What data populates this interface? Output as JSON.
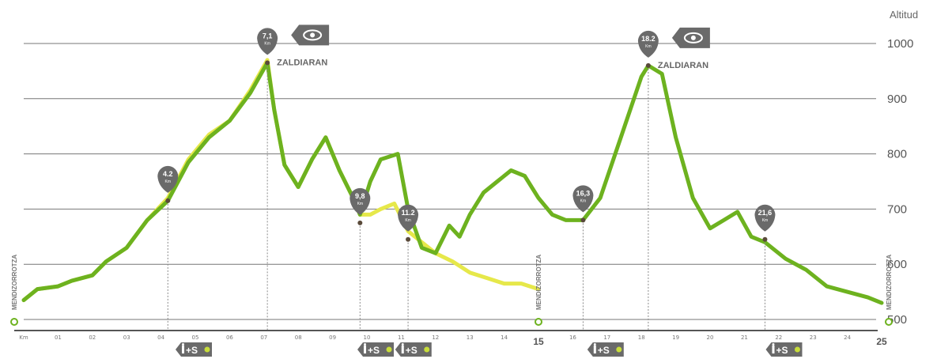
{
  "chart_data": {
    "type": "line",
    "ylabel": "Altitud",
    "ylim": [
      480,
      1030
    ],
    "yticks": [
      500,
      600,
      700,
      800,
      900,
      1000
    ],
    "xlim": [
      0,
      25
    ],
    "grid": true,
    "x_ticks": [
      {
        "x": 0,
        "label": "Km"
      },
      {
        "x": 1,
        "label": "01"
      },
      {
        "x": 2,
        "label": "02"
      },
      {
        "x": 3,
        "label": "03"
      },
      {
        "x": 4,
        "label": "04"
      },
      {
        "x": 5,
        "label": "05"
      },
      {
        "x": 6,
        "label": "06"
      },
      {
        "x": 7,
        "label": "07"
      },
      {
        "x": 8,
        "label": "08"
      },
      {
        "x": 9,
        "label": "09"
      },
      {
        "x": 10,
        "label": "10"
      },
      {
        "x": 11,
        "label": "11"
      },
      {
        "x": 12,
        "label": "12"
      },
      {
        "x": 13,
        "label": "13"
      },
      {
        "x": 14,
        "label": "14"
      },
      {
        "x": 15,
        "label": "15",
        "bold": true
      },
      {
        "x": 16,
        "label": "16"
      },
      {
        "x": 17,
        "label": "17"
      },
      {
        "x": 18,
        "label": "18"
      },
      {
        "x": 19,
        "label": "19"
      },
      {
        "x": 20,
        "label": "20"
      },
      {
        "x": 21,
        "label": "21"
      },
      {
        "x": 22,
        "label": "22"
      },
      {
        "x": 23,
        "label": "23"
      },
      {
        "x": 24,
        "label": "24"
      },
      {
        "x": 25,
        "label": "25",
        "bold": true
      }
    ],
    "series": [
      {
        "color": "#6db21f",
        "x": [
          0,
          0.4,
          1,
          1.4,
          2,
          2.4,
          3,
          3.6,
          4.2,
          4.8,
          5.4,
          6,
          6.6,
          7.1,
          7.3,
          7.6,
          8,
          8.4,
          8.8,
          9.2,
          9.6,
          9.8,
          10.1,
          10.4,
          10.9,
          11.2,
          11.6,
          12,
          12.4,
          12.7,
          13,
          13.4,
          13.8,
          14.2,
          14.6,
          15,
          15.4,
          15.8,
          16.3,
          16.8,
          17.4,
          18,
          18.2,
          18.6,
          19,
          19.5,
          20,
          20.4,
          20.8,
          21.2,
          21.6,
          22.2,
          22.8,
          23.4,
          24,
          24.6,
          25
        ],
        "y": [
          535,
          555,
          560,
          570,
          580,
          605,
          630,
          680,
          715,
          785,
          830,
          860,
          910,
          965,
          880,
          780,
          740,
          790,
          830,
          770,
          720,
          690,
          750,
          790,
          800,
          700,
          630,
          620,
          670,
          650,
          690,
          730,
          750,
          770,
          760,
          720,
          690,
          680,
          680,
          720,
          830,
          940,
          960,
          945,
          830,
          720,
          665,
          680,
          695,
          650,
          640,
          610,
          590,
          560,
          550,
          540,
          530
        ]
      },
      {
        "color": "#e6e84a",
        "x": [
          0,
          0.4,
          1,
          1.4,
          2,
          2.4,
          3,
          3.6,
          4.2,
          4.8,
          5.4,
          6,
          6.6,
          7.1,
          7.3,
          7.6,
          8,
          8.4,
          8.8,
          9.2,
          9.6,
          9.8,
          10.1,
          10.4,
          10.8,
          11.2,
          11.6,
          12,
          12.5,
          13,
          13.5,
          14,
          14.5,
          15
        ],
        "y": [
          535,
          555,
          560,
          570,
          580,
          605,
          630,
          680,
          720,
          790,
          835,
          860,
          915,
          970,
          880,
          780,
          740,
          790,
          830,
          770,
          720,
          690,
          690,
          700,
          710,
          660,
          640,
          620,
          605,
          585,
          575,
          565,
          565,
          555
        ]
      }
    ],
    "annotations": [
      {
        "x": 4.2,
        "y": 715,
        "label": "4.2",
        "unit": "Km"
      },
      {
        "x": 7.1,
        "y": 965,
        "label": "7,1",
        "unit": "Km",
        "place": "ZALDIARAN",
        "eye": true
      },
      {
        "x": 9.8,
        "y": 675,
        "label": "9,8",
        "unit": "Km"
      },
      {
        "x": 11.2,
        "y": 645,
        "label": "11.2",
        "unit": "Km"
      },
      {
        "x": 16.3,
        "y": 680,
        "label": "16,3",
        "unit": "Km"
      },
      {
        "x": 18.2,
        "y": 960,
        "label": "18.2",
        "unit": "Km",
        "place": "ZALDIARAN",
        "eye": true
      },
      {
        "x": 21.6,
        "y": 645,
        "label": "21,6",
        "unit": "Km"
      }
    ],
    "end_labels": [
      {
        "x": 0,
        "label": "MENDIZORROTZA"
      },
      {
        "x": 15,
        "label": "MENDIZORROTZA"
      },
      {
        "x": 25,
        "label": "MENDIZORROTZA"
      }
    ],
    "service_badges": [
      {
        "x": 5.0,
        "label": "+S"
      },
      {
        "x": 10.3,
        "label": "+S"
      },
      {
        "x": 11.4,
        "label": "+S"
      },
      {
        "x": 17.0,
        "label": "+S"
      },
      {
        "x": 22.2,
        "label": "+S"
      }
    ]
  },
  "colors": {
    "green": "#6db21f",
    "yellow": "#e6e84a",
    "marker": "#6a6a6a",
    "grid": "#777777",
    "axis": "#555555"
  }
}
